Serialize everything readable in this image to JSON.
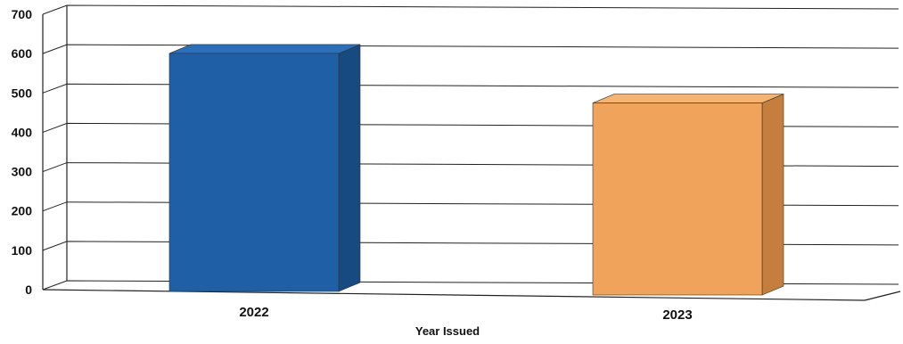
{
  "chart_data": {
    "type": "bar",
    "title": "",
    "categories": [
      "2022",
      "2023"
    ],
    "values": [
      605,
      488
    ],
    "xlabel": "Year Issued",
    "ylabel": "",
    "ylim": [
      0,
      700
    ],
    "yticks": [
      0,
      100,
      200,
      300,
      400,
      500,
      600,
      700
    ],
    "grid": true,
    "legend": "none",
    "bar_colors": [
      "#1f5fa6",
      "#f0a35a"
    ],
    "bar_side_colors": [
      "#174a80",
      "#c47f3c"
    ],
    "bar_top_colors": [
      "#2a6fb8",
      "#f5b472"
    ]
  }
}
